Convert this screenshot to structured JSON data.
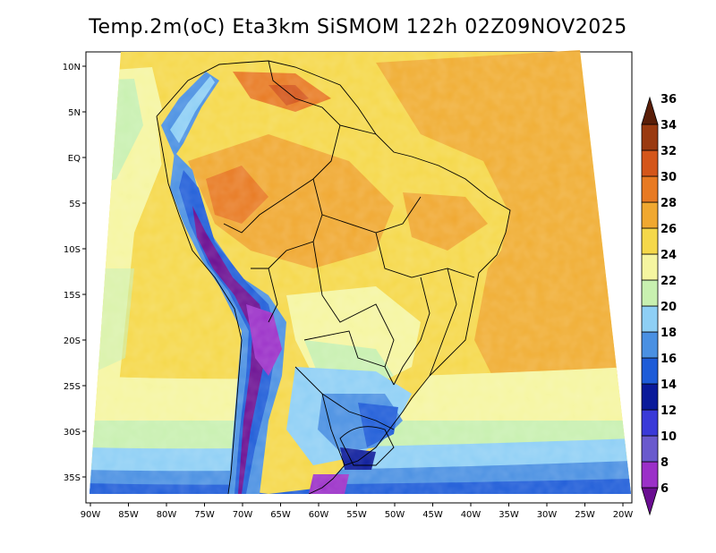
{
  "title": "Temp.2m(oC) Eta3km SiSMOM 122h 02Z09NOV2025",
  "map": {
    "variable": "2 m temperature",
    "units": "oC",
    "model": "Eta3km SiSMOM",
    "lat_ticks": [
      "10N",
      "5N",
      "EQ",
      "5S",
      "10S",
      "15S",
      "20S",
      "25S",
      "30S",
      "35S"
    ],
    "lon_ticks": [
      "90W",
      "85W",
      "80W",
      "75W",
      "70W",
      "65W",
      "60W",
      "55W",
      "50W",
      "45W",
      "40W",
      "35W",
      "30W",
      "25W",
      "20W"
    ]
  },
  "colorbar": {
    "levels": [
      "6",
      "8",
      "10",
      "12",
      "14",
      "16",
      "18",
      "20",
      "22",
      "24",
      "26",
      "28",
      "30",
      "32",
      "34",
      "36"
    ],
    "colors": [
      "#6a0d91",
      "#9b30c8",
      "#6a5acd",
      "#3a3ad8",
      "#0a1a9a",
      "#1e5cd8",
      "#4a90e2",
      "#8ecff5",
      "#c8f0b0",
      "#f5f5a0",
      "#f5d84a",
      "#f0a830",
      "#e87a22",
      "#d4561a",
      "#9a3a10",
      "#5a1e08"
    ]
  }
}
